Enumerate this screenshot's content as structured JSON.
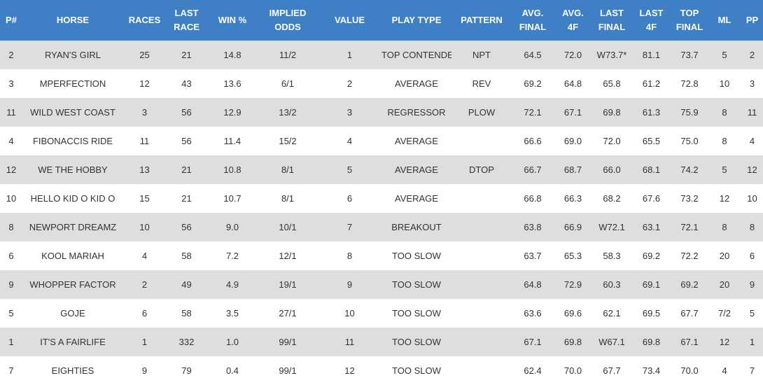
{
  "table": {
    "header": [
      "P#",
      "HORSE",
      "RACES",
      "LAST\nRACE",
      "WIN %",
      "IMPLIED ODDS",
      "VALUE",
      "PLAY TYPE",
      "PATTERN",
      "AVG.\nFINAL",
      "AVG.\n4F",
      "LAST\nFINAL",
      "LAST\n4F",
      "TOP\nFINAL",
      "ML",
      "PP"
    ],
    "rows": [
      [
        "2",
        "RYAN'S GIRL",
        "25",
        "21",
        "14.8",
        "11/2",
        "1",
        "TOP CONTENDER",
        "NPT",
        "64.5",
        "72.0",
        "W73.7*",
        "81.1",
        "73.7",
        "5",
        "2"
      ],
      [
        "3",
        "MPERFECTION",
        "12",
        "43",
        "13.6",
        "6/1",
        "2",
        "AVERAGE",
        "REV",
        "69.2",
        "64.8",
        "65.8",
        "61.2",
        "72.8",
        "10",
        "3"
      ],
      [
        "11",
        "WILD WEST COAST",
        "3",
        "56",
        "12.9",
        "13/2",
        "3",
        "REGRESSOR",
        "PLOW",
        "72.1",
        "67.1",
        "69.8",
        "61.3",
        "75.9",
        "8",
        "11"
      ],
      [
        "4",
        "FIBONACCIS RIDE",
        "11",
        "56",
        "11.4",
        "15/2",
        "4",
        "AVERAGE",
        null,
        "66.6",
        "69.0",
        "72.0",
        "65.5",
        "75.0",
        "8",
        "4"
      ],
      [
        "12",
        "WE THE HOBBY",
        "13",
        "21",
        "10.8",
        "8/1",
        "5",
        "AVERAGE",
        "DTOP",
        "66.7",
        "68.7",
        "66.0",
        "68.1",
        "74.2",
        "5",
        "12"
      ],
      [
        "10",
        "HELLO KID O KID O",
        "15",
        "21",
        "10.7",
        "8/1",
        "6",
        "AVERAGE",
        null,
        "66.8",
        "66.3",
        "68.2",
        "67.6",
        "73.2",
        "12",
        "10"
      ],
      [
        "8",
        "NEWPORT DREAMZ",
        "10",
        "56",
        "9.0",
        "10/1",
        "7",
        "BREAKOUT",
        null,
        "63.8",
        "66.9",
        "W72.1",
        "63.1",
        "72.1",
        "8",
        "8"
      ],
      [
        "6",
        "KOOL MARIAH",
        "4",
        "58",
        "7.2",
        "12/1",
        "8",
        "TOO SLOW",
        null,
        "63.7",
        "65.3",
        "58.3",
        "69.2",
        "72.2",
        "20",
        "6"
      ],
      [
        "9",
        "WHOPPER FACTOR",
        "2",
        "49",
        "4.9",
        "19/1",
        "9",
        "TOO SLOW",
        null,
        "64.8",
        "72.9",
        "60.3",
        "69.1",
        "69.2",
        "20",
        "9"
      ],
      [
        "5",
        "GOJE",
        "6",
        "58",
        "3.5",
        "27/1",
        "10",
        "TOO SLOW",
        null,
        "63.6",
        "69.6",
        "62.1",
        "69.5",
        "67.7",
        "7/2",
        "5"
      ],
      [
        "1",
        "IT'S A FAIRLIFE",
        "1",
        "332",
        "1.0",
        "99/1",
        "11",
        "TOO SLOW",
        null,
        "67.1",
        "69.8",
        "W67.1",
        "69.8",
        "67.1",
        "12",
        "1"
      ],
      [
        "7",
        "EIGHTIES",
        "9",
        "79",
        "0.4",
        "99/1",
        "12",
        "TOO SLOW",
        null,
        "62.4",
        "70.0",
        "67.7",
        "73.4",
        "70.0",
        "4",
        "7"
      ]
    ]
  }
}
